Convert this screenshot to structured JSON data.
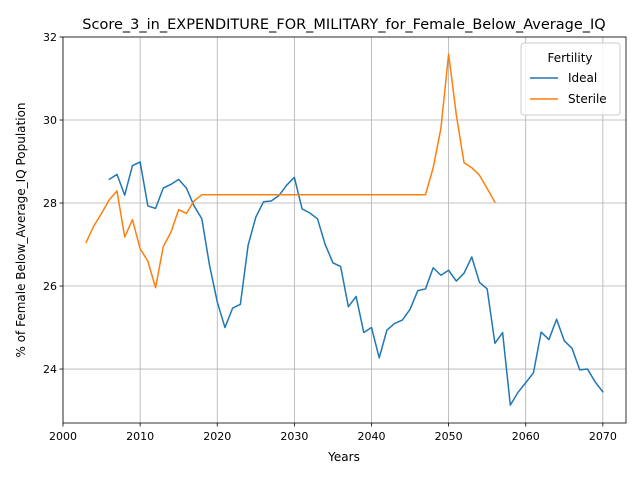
{
  "chart_data": {
    "type": "line",
    "title": "Score_3_in_EXPENDITURE_FOR_MILITARY_for_Female_Below_Average_IQ",
    "xlabel": "Years",
    "ylabel": "% of Female Below_Average_IQ Population",
    "xlim": [
      2000,
      2073
    ],
    "ylim": [
      22.7,
      32
    ],
    "xticks": [
      2000,
      2010,
      2020,
      2030,
      2040,
      2050,
      2060,
      2070
    ],
    "yticks": [
      24,
      26,
      28,
      30,
      32
    ],
    "grid": true,
    "legend": {
      "title": "Fertility",
      "position": "top-right"
    },
    "series": [
      {
        "name": "Ideal",
        "color": "#1f77b4",
        "x": [
          2006,
          2007,
          2008,
          2009,
          2010,
          2011,
          2012,
          2013,
          2014,
          2015,
          2016,
          2017,
          2018,
          2019,
          2020,
          2021,
          2022,
          2023,
          2024,
          2025,
          2026,
          2027,
          2028,
          2029,
          2030,
          2031,
          2032,
          2033,
          2034,
          2035,
          2036,
          2037,
          2038,
          2039,
          2040,
          2041,
          2042,
          2043,
          2044,
          2045,
          2046,
          2047,
          2048,
          2049,
          2050,
          2051,
          2052,
          2053,
          2054,
          2055,
          2056,
          2057,
          2058,
          2059,
          2060,
          2061,
          2062,
          2063,
          2064,
          2065,
          2066,
          2067,
          2068,
          2069,
          2070
        ],
        "values": [
          28.57,
          28.69,
          28.19,
          28.9,
          28.99,
          27.93,
          27.87,
          28.36,
          28.45,
          28.57,
          28.36,
          27.93,
          27.62,
          26.5,
          25.62,
          25.0,
          25.47,
          25.56,
          26.98,
          27.66,
          28.03,
          28.05,
          28.18,
          28.43,
          28.62,
          27.86,
          27.76,
          27.62,
          27.0,
          26.56,
          26.47,
          25.5,
          25.75,
          24.88,
          25.0,
          24.27,
          24.94,
          25.1,
          25.18,
          25.44,
          25.89,
          25.93,
          26.44,
          26.26,
          26.38,
          26.12,
          26.31,
          26.7,
          26.09,
          25.93,
          24.62,
          24.88,
          23.13,
          23.44,
          23.67,
          23.91,
          24.89,
          24.71,
          25.2,
          24.68,
          24.5,
          23.98,
          24.0,
          23.69,
          23.45
        ]
      },
      {
        "name": "Sterile",
        "color": "#ff7f0e",
        "x": [
          2003,
          2004,
          2005,
          2006,
          2007,
          2008,
          2009,
          2010,
          2011,
          2012,
          2013,
          2014,
          2015,
          2016,
          2017,
          2018,
          2019,
          2020,
          2021,
          2022,
          2023,
          2024,
          2025,
          2026,
          2027,
          2028,
          2029,
          2030,
          2031,
          2032,
          2033,
          2034,
          2035,
          2036,
          2037,
          2038,
          2039,
          2040,
          2041,
          2042,
          2043,
          2044,
          2045,
          2046,
          2047,
          2048,
          2049,
          2050,
          2051,
          2052,
          2053,
          2054,
          2055,
          2056
        ],
        "values": [
          27.05,
          27.45,
          27.75,
          28.08,
          28.29,
          27.18,
          27.6,
          26.9,
          26.6,
          25.96,
          26.95,
          27.3,
          27.84,
          27.75,
          28.05,
          28.2,
          28.2,
          28.2,
          28.2,
          28.2,
          28.2,
          28.2,
          28.2,
          28.2,
          28.2,
          28.2,
          28.2,
          28.2,
          28.2,
          28.2,
          28.2,
          28.2,
          28.2,
          28.2,
          28.2,
          28.2,
          28.2,
          28.2,
          28.2,
          28.2,
          28.2,
          28.2,
          28.2,
          28.2,
          28.2,
          28.85,
          29.8,
          31.59,
          30.12,
          28.97,
          28.85,
          28.67,
          28.35,
          28.02
        ]
      }
    ]
  }
}
